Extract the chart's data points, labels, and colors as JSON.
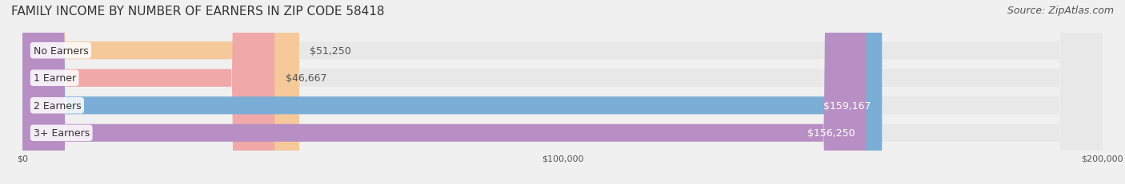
{
  "title": "FAMILY INCOME BY NUMBER OF EARNERS IN ZIP CODE 58418",
  "source": "Source: ZipAtlas.com",
  "categories": [
    "No Earners",
    "1 Earner",
    "2 Earners",
    "3+ Earners"
  ],
  "values": [
    51250,
    46667,
    159167,
    156250
  ],
  "bar_colors": [
    "#f5c99a",
    "#f0a8a8",
    "#7aaed6",
    "#b88fc4"
  ],
  "bar_edge_colors": [
    "#e8a870",
    "#e08080",
    "#5b8fbf",
    "#9a70ad"
  ],
  "label_colors": [
    "#555555",
    "#555555",
    "#ffffff",
    "#ffffff"
  ],
  "xlim": [
    0,
    200000
  ],
  "xticks": [
    0,
    100000,
    200000
  ],
  "xtick_labels": [
    "$0",
    "$100,000",
    "$200,000"
  ],
  "background_color": "#f0f0f0",
  "bar_bg_color": "#e8e8e8",
  "title_fontsize": 11,
  "source_fontsize": 9,
  "label_fontsize": 9,
  "category_fontsize": 9
}
